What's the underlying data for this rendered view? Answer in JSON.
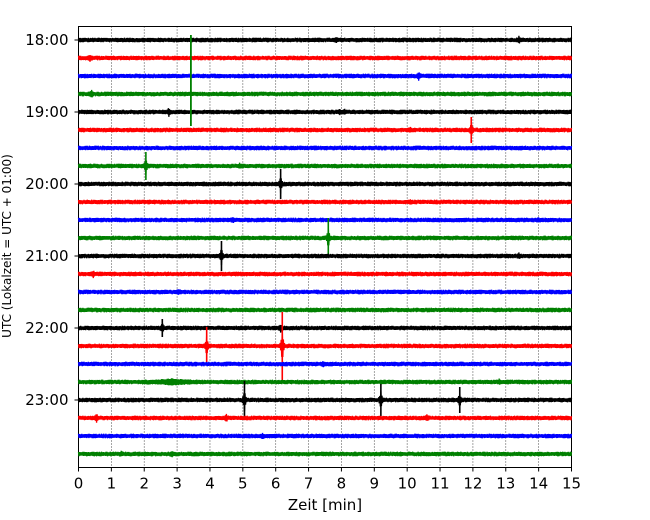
{
  "chart_data": {
    "type": "line",
    "subtype": "helicorder",
    "title": "",
    "xlabel": "Zeit  [min]",
    "ylabel": "UTC (Lokalzeit = UTC + 01:00)",
    "xlim": [
      0,
      15
    ],
    "x_ticks": [
      "0",
      "1",
      "2",
      "3",
      "4",
      "5",
      "6",
      "7",
      "8",
      "9",
      "10",
      "11",
      "12",
      "13",
      "14",
      "15"
    ],
    "y_ticks": [
      "18:00",
      "19:00",
      "20:00",
      "21:00",
      "22:00",
      "23:00"
    ],
    "grid": "vertical dotted",
    "trace_colors": [
      "#000000",
      "#ff0000",
      "#0000ff",
      "#008000"
    ],
    "traces": [
      {
        "start": "18:00",
        "events": [
          {
            "t": 7.85,
            "amp": 0.25
          },
          {
            "t": 13.4,
            "amp": 0.5
          }
        ]
      },
      {
        "start": "18:15",
        "events": [
          {
            "t": 0.35,
            "amp": 0.4
          }
        ]
      },
      {
        "start": "18:30",
        "events": [
          {
            "t": 10.35,
            "amp": 0.5
          }
        ]
      },
      {
        "start": "18:45",
        "events": [
          {
            "t": 0.4,
            "amp": 0.45
          }
        ]
      },
      {
        "start": "19:00",
        "events": [
          {
            "t": 2.75,
            "amp": 0.6
          },
          {
            "t": 7.95,
            "amp": 0.3
          },
          {
            "t": 8.1,
            "amp": 0.3
          }
        ]
      },
      {
        "start": "19:15",
        "events": [
          {
            "t": 11.95,
            "amp": 1.3
          },
          {
            "t": 10.1,
            "amp": 0.2
          }
        ]
      },
      {
        "start": "19:30",
        "events": []
      },
      {
        "start": "19:45",
        "events": [
          {
            "t": 2.05,
            "amp": 1.4
          },
          {
            "t": 4.9,
            "amp": 0.3
          }
        ]
      },
      {
        "start": "20:00",
        "events": [
          {
            "t": 6.15,
            "amp": 1.5
          }
        ]
      },
      {
        "start": "20:15",
        "events": [
          {
            "t": 10.1,
            "amp": 0.2
          }
        ]
      },
      {
        "start": "20:30",
        "events": [
          {
            "t": 4.7,
            "amp": 0.25
          },
          {
            "t": 14.0,
            "amp": 0.2
          }
        ]
      },
      {
        "start": "20:45",
        "events": [
          {
            "t": 7.6,
            "amp": 2.0
          }
        ]
      },
      {
        "start": "21:00",
        "events": [
          {
            "t": 4.35,
            "amp": 1.5
          },
          {
            "t": 13.4,
            "amp": 0.3
          }
        ]
      },
      {
        "start": "21:15",
        "events": [
          {
            "t": 0.45,
            "amp": 0.4
          }
        ]
      },
      {
        "start": "21:30",
        "events": [
          {
            "t": 3.05,
            "amp": 0.25
          }
        ]
      },
      {
        "start": "21:45",
        "events": []
      },
      {
        "start": "22:00",
        "events": [
          {
            "t": 2.55,
            "amp": 0.9
          },
          {
            "t": 6.15,
            "amp": 0.5
          }
        ]
      },
      {
        "start": "22:15",
        "events": [
          {
            "t": 3.9,
            "amp": 1.9
          },
          {
            "t": 6.2,
            "amp": 3.4
          }
        ]
      },
      {
        "start": "22:30",
        "events": [
          {
            "t": 7.45,
            "amp": 0.3
          }
        ]
      },
      {
        "start": "22:45",
        "events": [
          {
            "t": 2.85,
            "amp": 0.4,
            "burst": 1.6
          },
          {
            "t": 12.8,
            "amp": 0.25
          }
        ]
      },
      {
        "start": "23:00",
        "events": [
          {
            "t": 5.05,
            "amp": 1.9
          },
          {
            "t": 9.2,
            "amp": 1.6
          },
          {
            "t": 11.6,
            "amp": 1.3
          }
        ]
      },
      {
        "start": "23:15",
        "events": [
          {
            "t": 0.55,
            "amp": 0.6
          },
          {
            "t": 4.5,
            "amp": 0.45
          },
          {
            "t": 10.6,
            "amp": 0.4
          }
        ]
      },
      {
        "start": "23:30",
        "events": [
          {
            "t": 5.6,
            "amp": 0.3
          }
        ]
      },
      {
        "start": "23:45",
        "events": [
          {
            "t": 2.85,
            "amp": 0.3
          },
          {
            "t": 1.3,
            "amp": 0.2
          }
        ]
      }
    ],
    "cross_line_events": [
      {
        "t": 3.42,
        "from_trace": 0,
        "to_trace": 4,
        "color": "#008000"
      }
    ]
  }
}
